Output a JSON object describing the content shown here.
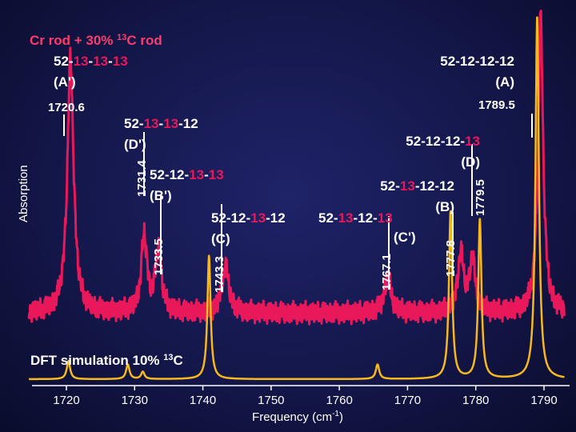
{
  "chart_data": {
    "type": "line",
    "title": {
      "prefix": "Cr rod + 30% ",
      "sup": "13",
      "suffix": "C rod"
    },
    "ylabel": "Absorption",
    "xlabel": {
      "prefix": "Frequency (cm",
      "sup": "-1",
      "suffix": ")"
    },
    "xlim": [
      1714.5,
      1793
    ],
    "x_ticks": [
      1720,
      1730,
      1740,
      1750,
      1760,
      1770,
      1780,
      1790
    ],
    "colors": {
      "experiment": "#e8185a",
      "simulation": "#f5b820",
      "highlight": "#e8185a",
      "text": "#ffffff",
      "species": "#9fb0ff"
    },
    "experiment": {
      "baseline": 0.05,
      "peaks": [
        {
          "x": 1720.6,
          "h": 0.86,
          "w": 0.55
        },
        {
          "x": 1731.4,
          "h": 0.26,
          "w": 0.5
        },
        {
          "x": 1733.5,
          "h": 0.22,
          "w": 0.5
        },
        {
          "x": 1743.3,
          "h": 0.16,
          "w": 0.6
        },
        {
          "x": 1767.1,
          "h": 0.12,
          "w": 0.6
        },
        {
          "x": 1777.8,
          "h": 0.2,
          "w": 0.5
        },
        {
          "x": 1779.5,
          "h": 0.18,
          "w": 0.5
        },
        {
          "x": 1789.5,
          "h": 1.0,
          "w": 0.45
        }
      ]
    },
    "simulation": {
      "name": {
        "prefix": "DFT simulation 10% ",
        "sup": "13",
        "suffix": "C"
      },
      "peaks": [
        {
          "x": 1720.3,
          "h": 0.05,
          "w": 0.3
        },
        {
          "x": 1729.0,
          "h": 0.04,
          "w": 0.3
        },
        {
          "x": 1731.2,
          "h": 0.02,
          "w": 0.3
        },
        {
          "x": 1740.9,
          "h": 0.34,
          "w": 0.28
        },
        {
          "x": 1765.6,
          "h": 0.04,
          "w": 0.3
        },
        {
          "x": 1776.3,
          "h": 0.46,
          "w": 0.28
        },
        {
          "x": 1780.6,
          "h": 0.44,
          "w": 0.28
        },
        {
          "x": 1789.0,
          "h": 1.0,
          "w": 0.3
        }
      ]
    },
    "peak_labels": [
      "1720.6",
      "1731.4",
      "1733.5",
      "1743.3",
      "1767.1",
      "1777.8",
      "1779.5",
      "1789.5"
    ],
    "species": [
      {
        "id": "A'",
        "isotopes": [
          "52",
          "13",
          "13",
          "13"
        ],
        "tag": "(A')"
      },
      {
        "id": "A",
        "isotopes": [
          "52",
          "12",
          "12",
          "12"
        ],
        "tag": "(A)"
      },
      {
        "id": "D'",
        "isotopes": [
          "52",
          "13",
          "13",
          "12"
        ],
        "tag": "(D')"
      },
      {
        "id": "D",
        "isotopes": [
          "52",
          "12",
          "12",
          "13"
        ],
        "tag": "(D)"
      },
      {
        "id": "B'",
        "isotopes": [
          "52",
          "12",
          "13",
          "13"
        ],
        "tag": "(B')"
      },
      {
        "id": "B",
        "isotopes": [
          "52",
          "13",
          "12",
          "12"
        ],
        "tag": "(B)"
      },
      {
        "id": "C",
        "isotopes": [
          "52",
          "12",
          "13",
          "12"
        ],
        "tag": "(C)"
      },
      {
        "id": "C'",
        "isotopes": [
          "52",
          "13",
          "12",
          "13"
        ],
        "tag": "(C')"
      }
    ]
  }
}
